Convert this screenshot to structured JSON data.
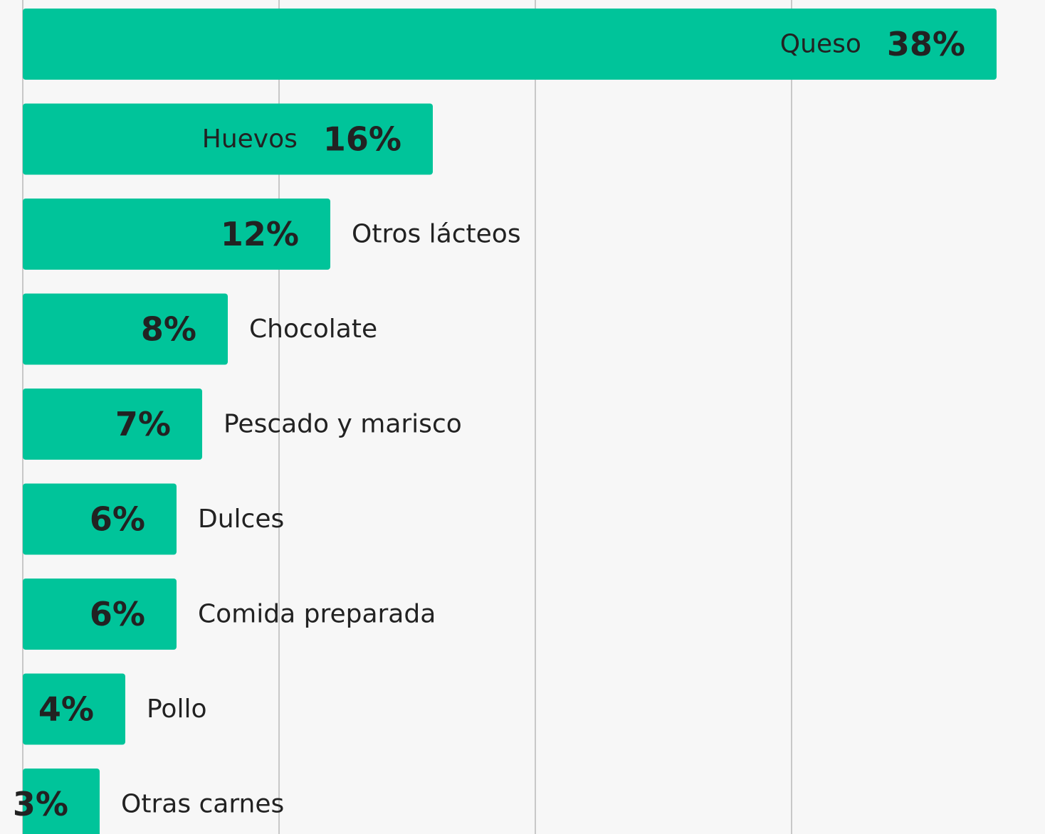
{
  "chart_data": {
    "type": "bar",
    "orientation": "horizontal",
    "categories": [
      "Queso",
      "Huevos",
      "Otros lácteos",
      "Chocolate",
      "Pescado y marisco",
      "Dulces",
      "Comida preparada",
      "Pollo",
      "Otras carnes"
    ],
    "values": [
      38,
      16,
      12,
      8,
      7,
      6,
      6,
      4,
      3
    ],
    "value_labels": [
      "38%",
      "16%",
      "12%",
      "8%",
      "7%",
      "6%",
      "6%",
      "4%",
      "3%"
    ],
    "color": "#00c49a",
    "xlim": [
      0,
      40
    ],
    "xticks": [
      0,
      10,
      20,
      30
    ],
    "grid": true
  }
}
